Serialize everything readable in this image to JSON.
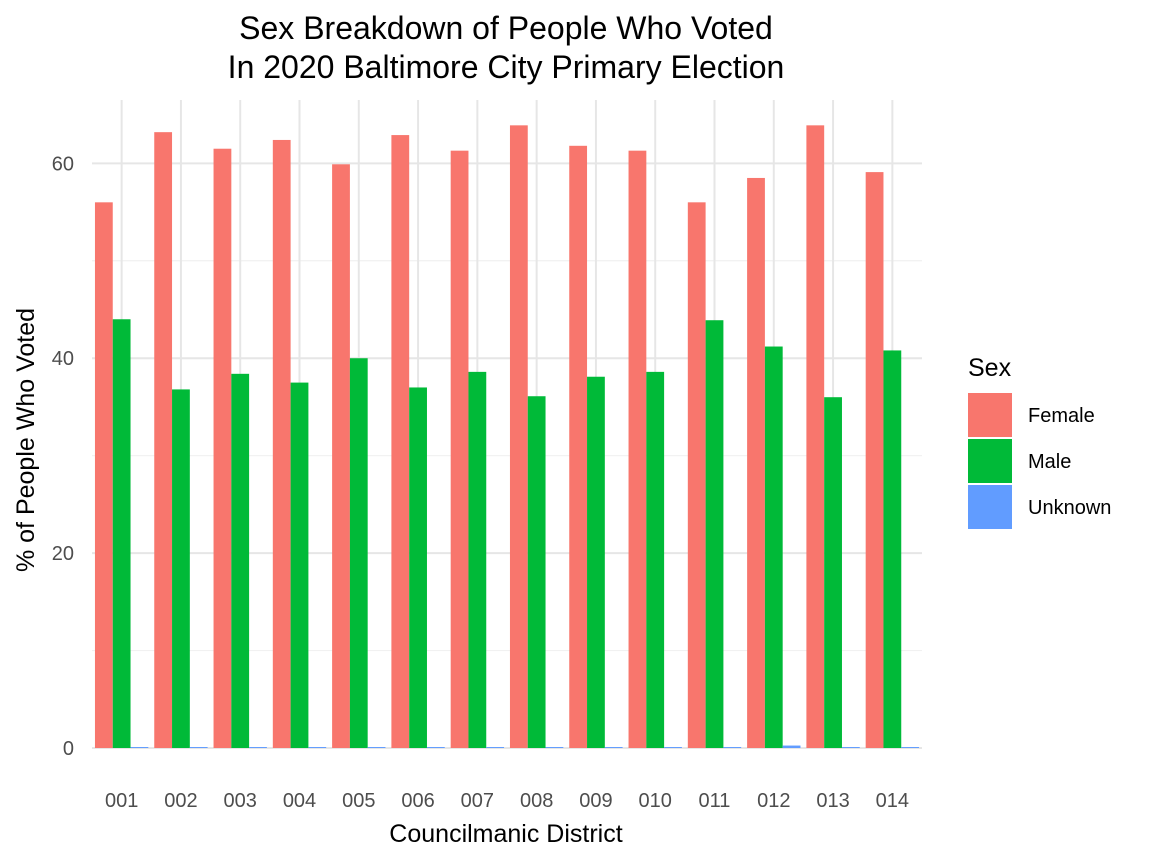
{
  "chart_data": {
    "type": "bar",
    "title_lines": [
      "Sex Breakdown of People Who Voted",
      "In 2020 Baltimore City Primary Election"
    ],
    "xlabel": "Councilmanic District",
    "ylabel": "% of People Who Voted",
    "categories": [
      "001",
      "002",
      "003",
      "004",
      "005",
      "006",
      "007",
      "008",
      "009",
      "010",
      "011",
      "012",
      "013",
      "014"
    ],
    "ylim": [
      0,
      66.5
    ],
    "yticks": [
      0,
      20,
      40,
      60
    ],
    "grid": true,
    "legend": {
      "title": "Sex",
      "position": "right"
    },
    "series": [
      {
        "name": "Female",
        "color": "#F8766D",
        "values": [
          56.0,
          63.2,
          61.5,
          62.4,
          59.9,
          62.9,
          61.3,
          63.9,
          61.8,
          61.3,
          56.0,
          58.5,
          63.9,
          59.1
        ]
      },
      {
        "name": "Male",
        "color": "#00BA38",
        "values": [
          44.0,
          36.8,
          38.4,
          37.5,
          40.0,
          37.0,
          38.6,
          36.1,
          38.1,
          38.6,
          43.9,
          41.2,
          36.0,
          40.8
        ]
      },
      {
        "name": "Unknown",
        "color": "#619CFF",
        "values": [
          0.1,
          0.1,
          0.1,
          0.1,
          0.1,
          0.1,
          0.1,
          0.1,
          0.1,
          0.1,
          0.1,
          0.25,
          0.1,
          0.1
        ]
      }
    ]
  }
}
